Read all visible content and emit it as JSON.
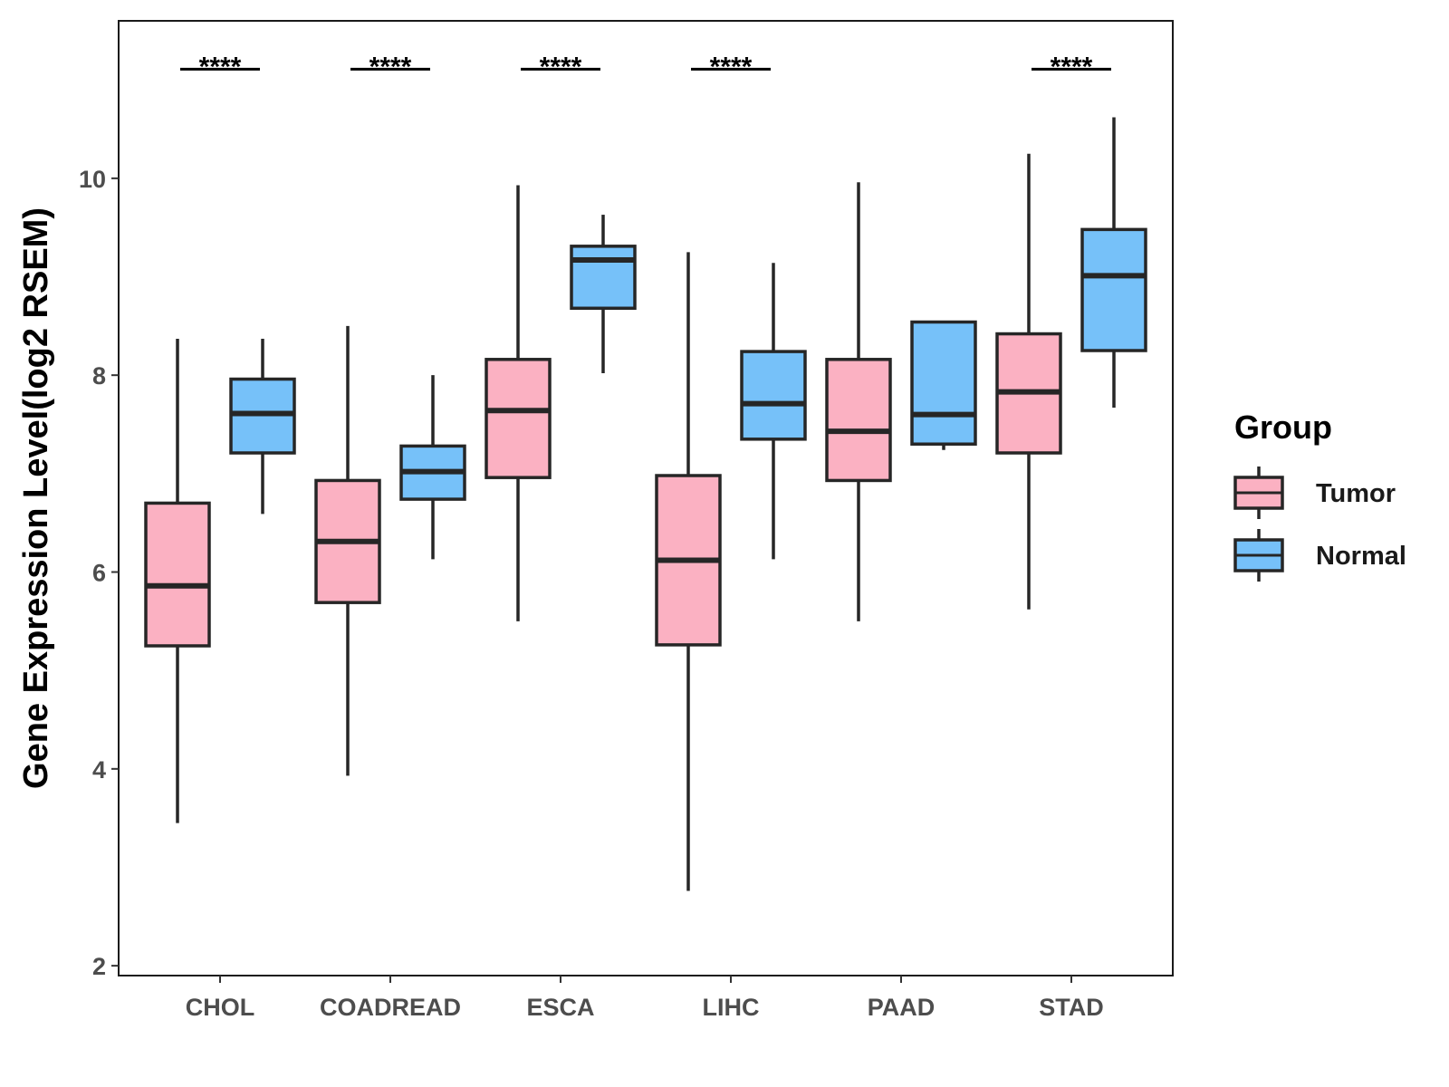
{
  "chart_data": {
    "type": "boxplot",
    "title": "",
    "xlabel": "",
    "ylabel": "Gene Expression Level(log2 RSEM)",
    "ylim": [
      1.9,
      11.6
    ],
    "yticks": [
      2,
      4,
      6,
      8,
      10
    ],
    "categories": [
      "CHOL",
      "COADREAD",
      "ESCA",
      "LIHC",
      "PAAD",
      "STAD"
    ],
    "legend": {
      "title": "Group",
      "position": "right",
      "entries": [
        {
          "name": "Tumor",
          "color": "#fbb1c2"
        },
        {
          "name": "Normal",
          "color": "#76c1f9"
        }
      ]
    },
    "series": [
      {
        "name": "Tumor",
        "color": "#fbb1c2",
        "boxes": [
          {
            "min": 3.45,
            "q1": 5.25,
            "median": 5.86,
            "q3": 6.7,
            "max": 8.37
          },
          {
            "min": 3.93,
            "q1": 5.69,
            "median": 6.31,
            "q3": 6.93,
            "max": 8.5
          },
          {
            "min": 5.5,
            "q1": 6.96,
            "median": 7.64,
            "q3": 8.16,
            "max": 9.93
          },
          {
            "min": 2.76,
            "q1": 5.26,
            "median": 6.12,
            "q3": 6.98,
            "max": 9.25
          },
          {
            "min": 5.5,
            "q1": 6.93,
            "median": 7.43,
            "q3": 8.16,
            "max": 9.96
          },
          {
            "min": 5.62,
            "q1": 7.21,
            "median": 7.83,
            "q3": 8.42,
            "max": 10.25
          }
        ]
      },
      {
        "name": "Normal",
        "color": "#76c1f9",
        "boxes": [
          {
            "min": 6.59,
            "q1": 7.21,
            "median": 7.61,
            "q3": 7.96,
            "max": 8.37
          },
          {
            "min": 6.13,
            "q1": 6.74,
            "median": 7.02,
            "q3": 7.28,
            "max": 8.0
          },
          {
            "min": 8.02,
            "q1": 8.68,
            "median": 9.17,
            "q3": 9.31,
            "max": 9.63
          },
          {
            "min": 6.13,
            "q1": 7.35,
            "median": 7.71,
            "q3": 8.24,
            "max": 9.14
          },
          {
            "min": 7.24,
            "q1": 7.3,
            "median": 7.6,
            "q3": 8.54,
            "max": 8.54
          },
          {
            "min": 7.67,
            "q1": 8.25,
            "median": 9.01,
            "q3": 9.48,
            "max": 10.62
          }
        ]
      }
    ],
    "significance": [
      "****",
      "****",
      "****",
      "****",
      "",
      "****"
    ],
    "significance_y": 11.1,
    "grid": false
  }
}
